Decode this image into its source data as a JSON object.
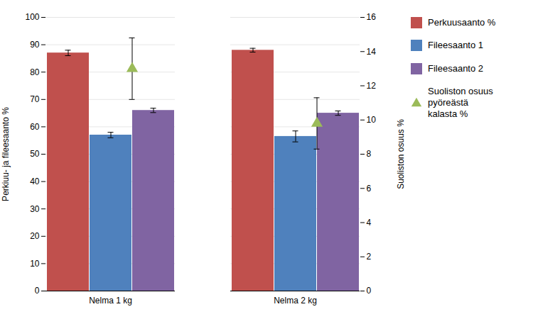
{
  "chart_data": {
    "type": "bar",
    "categories": [
      "Nelma 1 kg",
      "Nelma 2 kg"
    ],
    "series": [
      {
        "name": "Perkuusaanto %",
        "color": "#C0504D",
        "values": [
          87.0,
          88.0
        ],
        "errors": [
          1.0,
          0.7
        ]
      },
      {
        "name": "Fileesaanto 1",
        "color": "#4F81BD",
        "values": [
          57.0,
          56.5
        ],
        "errors": [
          1.0,
          2.0
        ]
      },
      {
        "name": "Fileesaanto 2",
        "color": "#8064A2",
        "values": [
          66.0,
          65.0
        ],
        "errors": [
          0.8,
          0.8
        ]
      },
      {
        "name": "Suoliston osuus pyöreästä\nkalasta %",
        "type": "scatter",
        "axis": "y2",
        "color": "#9BBB59",
        "marker": "triangle",
        "values": [
          13.0,
          9.8
        ],
        "errors": [
          1.8,
          1.5
        ]
      }
    ],
    "ylabel": "Perkiuu- ja fileesaanto %",
    "y2label": "Suoliston osuus %",
    "ylim": [
      0,
      100
    ],
    "yticks": [
      0,
      10,
      20,
      30,
      40,
      50,
      60,
      70,
      80,
      90,
      100
    ],
    "y2lim": [
      0,
      16
    ],
    "y2ticks": [
      0,
      2,
      4,
      6,
      8,
      10,
      12,
      14,
      16
    ],
    "grid": true,
    "legend": "right"
  }
}
